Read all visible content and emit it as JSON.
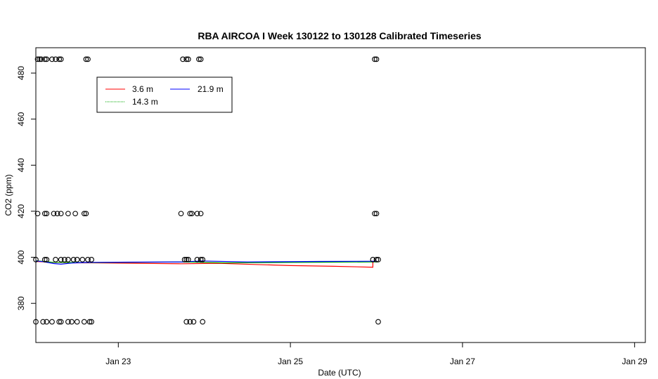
{
  "chart_data": {
    "type": "scatter",
    "title": "RBA AIRCOA I  Week 130122 to 130128  Calibrated Timeseries",
    "xlabel": "Date (UTC)",
    "ylabel": "CO2 (ppm)",
    "xlim": [
      "2013-01-22T01:00",
      "2013-01-29T03:00"
    ],
    "ylim": [
      363,
      491
    ],
    "x_ticks": [
      {
        "value": "2013-01-23",
        "label": "Jan 23"
      },
      {
        "value": "2013-01-25",
        "label": "Jan 25"
      },
      {
        "value": "2013-01-27",
        "label": "Jan 27"
      },
      {
        "value": "2013-01-29",
        "label": "Jan 29"
      }
    ],
    "y_ticks": [
      380,
      400,
      420,
      440,
      460,
      480
    ],
    "grid": false,
    "legend": {
      "position": "top-left",
      "entries": [
        {
          "name": "3.6 m",
          "color": "#ff0000"
        },
        {
          "name": "14.3 m",
          "color": "#00aa00"
        },
        {
          "name": "21.9 m",
          "color": "#0000ff"
        }
      ]
    },
    "calibration_points": [
      {
        "x": "2013-01-22T01:30",
        "y": 486
      },
      {
        "x": "2013-01-22T02:00",
        "y": 486
      },
      {
        "x": "2013-01-22T02:30",
        "y": 486
      },
      {
        "x": "2013-01-22T03:30",
        "y": 486
      },
      {
        "x": "2013-01-22T04:00",
        "y": 486
      },
      {
        "x": "2013-01-22T05:30",
        "y": 486
      },
      {
        "x": "2013-01-22T06:30",
        "y": 486
      },
      {
        "x": "2013-01-22T07:30",
        "y": 486
      },
      {
        "x": "2013-01-22T08:00",
        "y": 486
      },
      {
        "x": "2013-01-22T15:00",
        "y": 486
      },
      {
        "x": "2013-01-22T15:30",
        "y": 486
      },
      {
        "x": "2013-01-23T18:00",
        "y": 486
      },
      {
        "x": "2013-01-23T19:00",
        "y": 486
      },
      {
        "x": "2013-01-23T19:30",
        "y": 486
      },
      {
        "x": "2013-01-23T22:30",
        "y": 486
      },
      {
        "x": "2013-01-23T23:00",
        "y": 486
      },
      {
        "x": "2013-01-25T23:30",
        "y": 486
      },
      {
        "x": "2013-01-26T00:00",
        "y": 486
      },
      {
        "x": "2013-01-22T01:30",
        "y": 419
      },
      {
        "x": "2013-01-22T03:30",
        "y": 419
      },
      {
        "x": "2013-01-22T04:00",
        "y": 419
      },
      {
        "x": "2013-01-22T06:00",
        "y": 419
      },
      {
        "x": "2013-01-22T07:00",
        "y": 419
      },
      {
        "x": "2013-01-22T08:00",
        "y": 419
      },
      {
        "x": "2013-01-22T10:00",
        "y": 419
      },
      {
        "x": "2013-01-22T12:00",
        "y": 419
      },
      {
        "x": "2013-01-22T14:30",
        "y": 419
      },
      {
        "x": "2013-01-22T15:00",
        "y": 419
      },
      {
        "x": "2013-01-23T17:30",
        "y": 419
      },
      {
        "x": "2013-01-23T20:00",
        "y": 419
      },
      {
        "x": "2013-01-23T20:30",
        "y": 419
      },
      {
        "x": "2013-01-23T22:00",
        "y": 419
      },
      {
        "x": "2013-01-23T23:00",
        "y": 419
      },
      {
        "x": "2013-01-25T23:30",
        "y": 419
      },
      {
        "x": "2013-01-26T00:00",
        "y": 419
      },
      {
        "x": "2013-01-22T01:00",
        "y": 399
      },
      {
        "x": "2013-01-22T03:30",
        "y": 399
      },
      {
        "x": "2013-01-22T04:00",
        "y": 399
      },
      {
        "x": "2013-01-22T06:30",
        "y": 399
      },
      {
        "x": "2013-01-22T08:00",
        "y": 399
      },
      {
        "x": "2013-01-22T09:00",
        "y": 399
      },
      {
        "x": "2013-01-22T10:00",
        "y": 399
      },
      {
        "x": "2013-01-22T11:30",
        "y": 399
      },
      {
        "x": "2013-01-22T12:30",
        "y": 399
      },
      {
        "x": "2013-01-22T14:00",
        "y": 399
      },
      {
        "x": "2013-01-22T15:30",
        "y": 399
      },
      {
        "x": "2013-01-22T16:30",
        "y": 399
      },
      {
        "x": "2013-01-23T18:30",
        "y": 399
      },
      {
        "x": "2013-01-23T19:00",
        "y": 399
      },
      {
        "x": "2013-01-23T19:30",
        "y": 399
      },
      {
        "x": "2013-01-23T22:00",
        "y": 399
      },
      {
        "x": "2013-01-23T23:00",
        "y": 399
      },
      {
        "x": "2013-01-23T23:30",
        "y": 399
      },
      {
        "x": "2013-01-25T23:00",
        "y": 399
      },
      {
        "x": "2013-01-26T00:00",
        "y": 399
      },
      {
        "x": "2013-01-26T00:30",
        "y": 399
      },
      {
        "x": "2013-01-22T01:00",
        "y": 372
      },
      {
        "x": "2013-01-22T03:00",
        "y": 372
      },
      {
        "x": "2013-01-22T04:00",
        "y": 372
      },
      {
        "x": "2013-01-22T05:30",
        "y": 372
      },
      {
        "x": "2013-01-22T07:30",
        "y": 372
      },
      {
        "x": "2013-01-22T08:00",
        "y": 372
      },
      {
        "x": "2013-01-22T10:00",
        "y": 372
      },
      {
        "x": "2013-01-22T11:00",
        "y": 372
      },
      {
        "x": "2013-01-22T12:30",
        "y": 372
      },
      {
        "x": "2013-01-22T14:30",
        "y": 372
      },
      {
        "x": "2013-01-22T16:00",
        "y": 372
      },
      {
        "x": "2013-01-22T16:30",
        "y": 372
      },
      {
        "x": "2013-01-23T19:00",
        "y": 372
      },
      {
        "x": "2013-01-23T20:00",
        "y": 372
      },
      {
        "x": "2013-01-23T21:00",
        "y": 372
      },
      {
        "x": "2013-01-23T23:30",
        "y": 372
      },
      {
        "x": "2013-01-26T00:30",
        "y": 372
      }
    ],
    "series": [
      {
        "name": "3.6 m",
        "color": "#ff0000",
        "points": [
          {
            "x": "2013-01-22T01:00",
            "y": 398.2
          },
          {
            "x": "2013-01-22T06:00",
            "y": 397.8
          },
          {
            "x": "2013-01-22T12:00",
            "y": 397.6
          },
          {
            "x": "2013-01-22T17:00",
            "y": 397.6
          },
          {
            "x": "2013-01-23T17:30",
            "y": 397.2
          },
          {
            "x": "2013-01-24T04:00",
            "y": 397.4
          },
          {
            "x": "2013-01-24T14:00",
            "y": 396.9
          },
          {
            "x": "2013-01-25T00:00",
            "y": 396.4
          },
          {
            "x": "2013-01-25T12:00",
            "y": 396.1
          },
          {
            "x": "2013-01-25T23:00",
            "y": 395.7
          },
          {
            "x": "2013-01-25T23:00",
            "y": 398.5
          }
        ]
      },
      {
        "name": "14.3 m",
        "color": "#00aa00",
        "points": [
          {
            "x": "2013-01-22T01:00",
            "y": 398.5
          },
          {
            "x": "2013-01-22T06:00",
            "y": 397.8
          },
          {
            "x": "2013-01-22T12:00",
            "y": 397.7
          },
          {
            "x": "2013-01-22T17:00",
            "y": 397.7
          },
          {
            "x": "2013-01-23T18:00",
            "y": 398.0
          },
          {
            "x": "2013-01-24T06:00",
            "y": 397.6
          },
          {
            "x": "2013-01-24T18:00",
            "y": 397.7
          },
          {
            "x": "2013-01-25T12:00",
            "y": 397.9
          },
          {
            "x": "2013-01-26T00:30",
            "y": 398.0
          }
        ]
      },
      {
        "name": "21.9 m",
        "color": "#0000ff",
        "points": [
          {
            "x": "2013-01-22T01:00",
            "y": 398.4
          },
          {
            "x": "2013-01-22T03:00",
            "y": 398.1
          },
          {
            "x": "2013-01-22T06:00",
            "y": 397.3
          },
          {
            "x": "2013-01-22T08:00",
            "y": 397.0
          },
          {
            "x": "2013-01-22T11:00",
            "y": 397.5
          },
          {
            "x": "2013-01-22T14:00",
            "y": 397.7
          },
          {
            "x": "2013-01-22T17:00",
            "y": 397.8
          },
          {
            "x": "2013-01-23T03:00",
            "y": 397.9
          },
          {
            "x": "2013-01-23T18:00",
            "y": 398.0
          },
          {
            "x": "2013-01-23T23:00",
            "y": 398.4
          },
          {
            "x": "2013-01-24T12:00",
            "y": 398.0
          },
          {
            "x": "2013-01-25T08:00",
            "y": 398.2
          },
          {
            "x": "2013-01-26T00:00",
            "y": 398.3
          }
        ]
      }
    ]
  }
}
